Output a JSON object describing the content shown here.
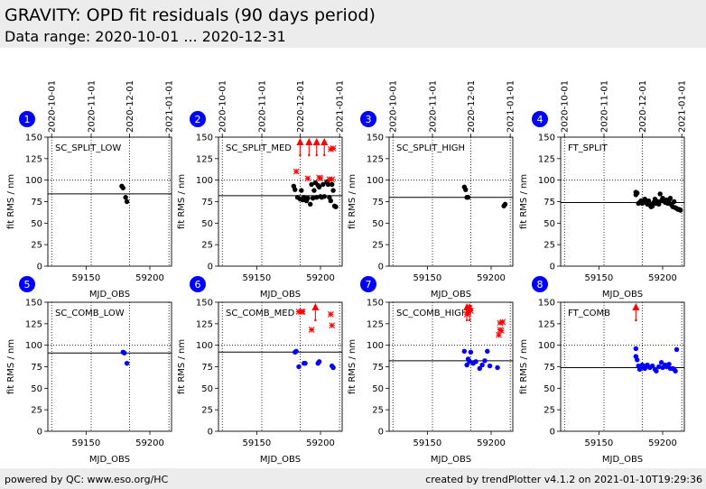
{
  "header": {
    "title": "GRAVITY: OPD fit residuals (90 days period)",
    "subtitle": "Data range: 2020-10-01 ... 2020-12-31"
  },
  "footer": {
    "left": "powered by QC: www.eso.org/HC",
    "right": "created by trendPlotter v4.1.2 on 2021-01-10T19:29:36"
  },
  "colors": {
    "black": "#000000",
    "blue": "#0000ff",
    "red": "#ff0000",
    "badge": "#0000ff"
  },
  "chart_data": {
    "type": "scatter",
    "shared": {
      "xlabel": "MJD_OBS",
      "ylabel": "fit RMS / nm",
      "xlim": [
        59120,
        59217
      ],
      "ylim": [
        0,
        150
      ],
      "xticks": [
        59150,
        59200
      ],
      "yticks": [
        0,
        25,
        50,
        75,
        100,
        125,
        150
      ],
      "date_axis": {
        "labels": [
          "2020-10-01",
          "2020-11-01",
          "2020-12-01",
          "2021-01-01"
        ],
        "mjd": [
          59123,
          59154,
          59184,
          59215
        ]
      },
      "vlines": [
        59123,
        59154,
        59184,
        59215
      ],
      "upper_limit_marker": "triangle-up arrow, value above axis range"
    },
    "panels": [
      {
        "number": "1",
        "label": "SC_SPLIT_LOW",
        "color": "black",
        "mean": 84,
        "ref_line": 100,
        "points": [
          [
            59178,
            93
          ],
          [
            59179,
            91
          ],
          [
            59181,
            80
          ],
          [
            59182,
            75
          ]
        ],
        "outliers": [],
        "upper": []
      },
      {
        "number": "2",
        "label": "SC_SPLIT_MED",
        "color": "black",
        "mean": 82,
        "ref_line": 100,
        "points": [
          [
            59179,
            93
          ],
          [
            59180,
            89
          ],
          [
            59182,
            80
          ],
          [
            59184,
            78
          ],
          [
            59185,
            88
          ],
          [
            59186,
            77
          ],
          [
            59187,
            80
          ],
          [
            59188,
            79
          ],
          [
            59189,
            76
          ],
          [
            59190,
            79
          ],
          [
            59192,
            72
          ],
          [
            59193,
            95
          ],
          [
            59194,
            79
          ],
          [
            59195,
            88
          ],
          [
            59196,
            97
          ],
          [
            59197,
            80
          ],
          [
            59198,
            94
          ],
          [
            59199,
            92
          ],
          [
            59200,
            81
          ],
          [
            59201,
            80
          ],
          [
            59202,
            95
          ],
          [
            59203,
            81
          ],
          [
            59205,
            98
          ],
          [
            59206,
            95
          ],
          [
            59207,
            80
          ],
          [
            59208,
            76
          ],
          [
            59209,
            95
          ],
          [
            59210,
            88
          ],
          [
            59211,
            70
          ],
          [
            59212,
            69
          ]
        ],
        "outliers": [
          [
            59181,
            110
          ],
          [
            59190,
            102
          ],
          [
            59199,
            103
          ],
          [
            59200,
            102
          ],
          [
            59207,
            101
          ],
          [
            59209,
            101
          ],
          [
            59208,
            136
          ],
          [
            59210,
            137
          ]
        ],
        "upper": [
          59184,
          59191,
          59197,
          59203
        ]
      },
      {
        "number": "3",
        "label": "SC_SPLIT_HIGH",
        "color": "black",
        "mean": 80,
        "ref_line": 100,
        "points": [
          [
            59179,
            92
          ],
          [
            59180,
            89
          ],
          [
            59181,
            80
          ],
          [
            59182,
            80
          ],
          [
            59210,
            70
          ],
          [
            59211,
            72
          ]
        ],
        "outliers": [],
        "upper": []
      },
      {
        "number": "4",
        "label": "FT_SPLIT",
        "color": "black",
        "mean": 74,
        "ref_line": 100,
        "points": [
          [
            59179,
            86
          ],
          [
            59179,
            83
          ],
          [
            59180,
            85
          ],
          [
            59181,
            73
          ],
          [
            59182,
            74
          ],
          [
            59183,
            76
          ],
          [
            59184,
            73
          ],
          [
            59185,
            76
          ],
          [
            59186,
            78
          ],
          [
            59187,
            74
          ],
          [
            59188,
            72
          ],
          [
            59189,
            76
          ],
          [
            59190,
            71
          ],
          [
            59191,
            69
          ],
          [
            59192,
            70
          ],
          [
            59193,
            74
          ],
          [
            59194,
            78
          ],
          [
            59195,
            73
          ],
          [
            59196,
            75
          ],
          [
            59197,
            72
          ],
          [
            59198,
            84
          ],
          [
            59199,
            76
          ],
          [
            59200,
            79
          ],
          [
            59201,
            76
          ],
          [
            59202,
            74
          ],
          [
            59203,
            77
          ],
          [
            59204,
            73
          ],
          [
            59205,
            76
          ],
          [
            59206,
            79
          ],
          [
            59207,
            71
          ],
          [
            59208,
            69
          ],
          [
            59209,
            75
          ],
          [
            59210,
            68
          ],
          [
            59211,
            67
          ],
          [
            59212,
            66
          ],
          [
            59213,
            66
          ],
          [
            59214,
            65
          ]
        ],
        "outliers": [],
        "upper": []
      },
      {
        "number": "5",
        "label": "SC_COMB_LOW",
        "color": "blue",
        "mean": 91,
        "ref_line": 100,
        "points": [
          [
            59179,
            92
          ],
          [
            59180,
            91
          ],
          [
            59182,
            79
          ]
        ],
        "outliers": [],
        "upper": []
      },
      {
        "number": "6",
        "label": "SC_COMB_MED",
        "color": "blue",
        "mean": 92,
        "ref_line": 100,
        "points": [
          [
            59180,
            92
          ],
          [
            59181,
            93
          ],
          [
            59183,
            75
          ],
          [
            59187,
            79
          ],
          [
            59188,
            79
          ],
          [
            59198,
            79
          ],
          [
            59199,
            81
          ],
          [
            59209,
            76
          ],
          [
            59210,
            74
          ]
        ],
        "outliers": [
          [
            59183,
            139
          ],
          [
            59185,
            139
          ],
          [
            59186,
            139
          ],
          [
            59193,
            118
          ],
          [
            59208,
            136
          ],
          [
            59209,
            123
          ]
        ],
        "upper": [
          59196
        ]
      },
      {
        "number": "7",
        "label": "SC_COMB_HIGH",
        "color": "blue",
        "mean": 82,
        "ref_line": 100,
        "points": [
          [
            59179,
            93
          ],
          [
            59181,
            77
          ],
          [
            59182,
            84
          ],
          [
            59183,
            81
          ],
          [
            59184,
            92
          ],
          [
            59186,
            79
          ],
          [
            59188,
            81
          ],
          [
            59191,
            73
          ],
          [
            59193,
            77
          ],
          [
            59195,
            82
          ],
          [
            59197,
            93
          ],
          [
            59199,
            76
          ],
          [
            59205,
            74
          ]
        ],
        "outliers": [
          [
            59181,
            136
          ],
          [
            59182,
            138
          ],
          [
            59184,
            140
          ],
          [
            59183,
            143
          ],
          [
            59206,
            112
          ],
          [
            59207,
            118
          ],
          [
            59208,
            117
          ],
          [
            59209,
            127
          ],
          [
            59207,
            126
          ]
        ],
        "upper": [
          59181,
          59183
        ]
      },
      {
        "number": "8",
        "label": "FT_COMB",
        "color": "blue",
        "mean": 74,
        "ref_line": 100,
        "points": [
          [
            59179,
            96
          ],
          [
            59179,
            87
          ],
          [
            59180,
            83
          ],
          [
            59181,
            76
          ],
          [
            59182,
            72
          ],
          [
            59183,
            74
          ],
          [
            59184,
            77
          ],
          [
            59185,
            76
          ],
          [
            59186,
            73
          ],
          [
            59187,
            75
          ],
          [
            59188,
            77
          ],
          [
            59190,
            74
          ],
          [
            59192,
            76
          ],
          [
            59194,
            72
          ],
          [
            59195,
            70
          ],
          [
            59197,
            75
          ],
          [
            59199,
            80
          ],
          [
            59200,
            74
          ],
          [
            59202,
            77
          ],
          [
            59203,
            75
          ],
          [
            59204,
            76
          ],
          [
            59205,
            78
          ],
          [
            59206,
            73
          ],
          [
            59208,
            73
          ],
          [
            59209,
            72
          ],
          [
            59210,
            70
          ],
          [
            59211,
            95
          ]
        ],
        "outliers": [],
        "upper": [
          59179
        ]
      }
    ]
  }
}
